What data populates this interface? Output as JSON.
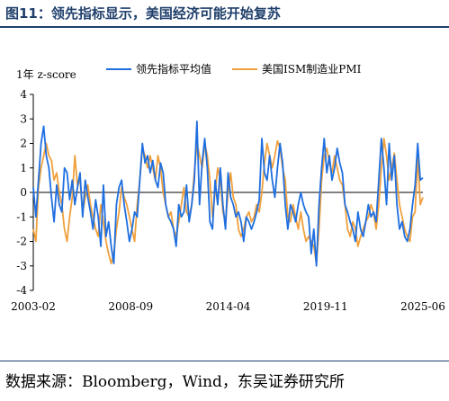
{
  "figure": {
    "title": "图11：领先指标显示，美国经济可能开始复苏",
    "source": "数据来源：Bloomberg，Wind，东吴证券研究所"
  },
  "chart_data": {
    "type": "line",
    "ylabel": "1年 z-score",
    "ylim": [
      -4,
      4
    ],
    "yticks": [
      -4,
      -3,
      -2,
      -1,
      0,
      1,
      2,
      3,
      4
    ],
    "xticks": [
      "2003-02",
      "2008-09",
      "2014-04",
      "2019-11",
      "2025-06"
    ],
    "x_start": "2003-02",
    "x_end": "2025-06",
    "legend_position": "top",
    "grid": false,
    "series": [
      {
        "name": "领先指标平均值",
        "color": "#1f6fe0",
        "values": [
          0.2,
          -1.0,
          0.5,
          2.0,
          2.7,
          1.5,
          1.0,
          -0.2,
          -1.2,
          0.3,
          -0.5,
          -0.8,
          1.0,
          0.8,
          -0.3,
          0.5,
          -0.5,
          0.2,
          0.8,
          -1.0,
          0.5,
          -0.2,
          -0.8,
          -1.5,
          -0.3,
          -1.0,
          -2.2,
          0.3,
          -1.8,
          -1.2,
          -2.2,
          -2.9,
          -0.5,
          0.2,
          0.5,
          -0.5,
          -1.2,
          -2.0,
          -1.5,
          -0.8,
          -1.0,
          0.5,
          2.0,
          1.2,
          1.5,
          0.8,
          1.3,
          0.5,
          0.2,
          1.2,
          0.8,
          -0.5,
          -1.0,
          -1.2,
          -1.5,
          -2.2,
          -0.5,
          -1.0,
          -0.8,
          0.3,
          -1.2,
          -0.5,
          0.5,
          2.9,
          -0.5,
          1.2,
          2.2,
          1.0,
          -1.2,
          -1.5,
          0.5,
          -0.5,
          1.0,
          -0.5,
          -1.5,
          0.8,
          -0.2,
          -0.5,
          -1.0,
          -0.8,
          -1.2,
          -2.0,
          -1.0,
          -1.2,
          -1.5,
          -1.2,
          -0.8,
          -0.3,
          2.2,
          0.8,
          0.5,
          1.5,
          0.5,
          -0.2,
          1.0,
          2.0,
          1.2,
          -0.5,
          -1.5,
          -0.5,
          -0.8,
          -1.2,
          -0.5,
          0.0,
          -0.5,
          -0.8,
          -1.0,
          -2.5,
          -1.5,
          -3.0,
          -0.5,
          1.0,
          2.2,
          0.8,
          1.5,
          0.5,
          1.0,
          1.8,
          1.2,
          0.8,
          -0.5,
          -0.8,
          -1.2,
          -1.5,
          -2.0,
          -0.8,
          -1.5,
          -1.8,
          -1.2,
          -0.5,
          -1.0,
          -0.8,
          -1.2,
          0.5,
          2.2,
          1.0,
          -0.5,
          2.0,
          0.5,
          1.5,
          -0.5,
          -1.5,
          -1.2,
          -1.8,
          -2.0,
          -1.5,
          -0.5,
          0.3,
          2.0,
          0.5,
          0.6
        ]
      },
      {
        "name": "美国ISM制造业PMI",
        "color": "#f0a03c",
        "values": [
          -1.5,
          -2.0,
          0.2,
          1.0,
          1.5,
          2.0,
          1.5,
          1.3,
          0.5,
          0.8,
          0.0,
          -0.5,
          -1.5,
          -2.0,
          -1.0,
          -0.2,
          1.5,
          0.3,
          0.5,
          -0.8,
          -0.2,
          0.3,
          -0.5,
          -1.0,
          -1.5,
          -1.8,
          -0.5,
          -1.2,
          -2.0,
          -2.5,
          -2.9,
          -2.5,
          -1.5,
          -0.8,
          0.2,
          -0.2,
          -0.5,
          -1.0,
          -1.5,
          -2.0,
          -0.5,
          0.5,
          1.8,
          1.5,
          1.0,
          1.5,
          1.0,
          0.5,
          1.5,
          1.0,
          0.0,
          -0.5,
          -1.0,
          -0.8,
          -1.5,
          -1.8,
          -1.2,
          -0.5,
          0.2,
          -0.8,
          -1.0,
          -0.5,
          0.8,
          2.0,
          1.5,
          1.0,
          2.0,
          1.5,
          0.5,
          -1.0,
          0.0,
          1.0,
          0.5,
          -0.8,
          -1.2,
          0.0,
          0.8,
          -0.2,
          -0.5,
          -1.5,
          -1.8,
          -1.5,
          -1.0,
          -0.8,
          -1.2,
          -1.0,
          -0.5,
          -0.8,
          0.0,
          1.2,
          2.0,
          1.5,
          1.0,
          1.5,
          2.1,
          1.8,
          1.0,
          0.5,
          -1.0,
          -1.2,
          -0.5,
          -1.0,
          -1.5,
          -0.8,
          -1.5,
          -2.0,
          -1.8,
          -2.0,
          -2.2,
          -2.9,
          -1.5,
          0.5,
          1.5,
          1.8,
          1.2,
          0.8,
          1.5,
          1.0,
          0.5,
          0.3,
          -0.5,
          -1.5,
          -1.8,
          -1.2,
          -1.5,
          -2.2,
          -1.8,
          -1.5,
          -1.2,
          -1.0,
          -0.5,
          -0.8,
          -1.5,
          -0.5,
          1.0,
          2.2,
          1.5,
          0.5,
          1.0,
          1.6,
          0.5,
          -0.5,
          -1.0,
          -1.5,
          -1.8,
          -2.0,
          -1.0,
          -0.8,
          1.5,
          -0.5,
          -0.2
        ]
      }
    ]
  }
}
